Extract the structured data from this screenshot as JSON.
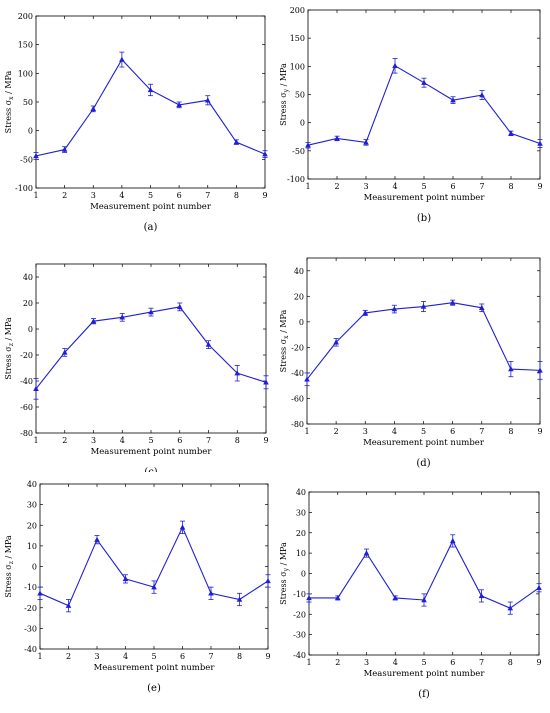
{
  "chart_data": [
    {
      "type": "line",
      "panel_label": "(a)",
      "xlabel": "Measurement point number",
      "ylabel": "Stress σ_x / MPa",
      "x": [
        1,
        2,
        3,
        4,
        5,
        6,
        7,
        8,
        9
      ],
      "ylim": [
        -100,
        200
      ],
      "yticks": [
        -100,
        -50,
        0,
        50,
        100,
        150,
        200
      ],
      "series": [
        {
          "values": [
            -44,
            -33,
            38,
            124,
            71,
            45,
            53,
            -20,
            -41
          ],
          "errors": [
            6,
            5,
            5,
            13,
            10,
            5,
            8,
            4,
            6
          ]
        }
      ]
    },
    {
      "type": "line",
      "panel_label": "(b)",
      "xlabel": "Measurement point number",
      "ylabel": "Stress σ_y / MPa",
      "x": [
        1,
        2,
        3,
        4,
        5,
        6,
        7,
        8,
        9
      ],
      "ylim": [
        -100,
        200
      ],
      "yticks": [
        -100,
        -50,
        0,
        50,
        100,
        150,
        200
      ],
      "series": [
        {
          "values": [
            -40,
            -28,
            -35,
            101,
            71,
            40,
            49,
            -19,
            -37
          ],
          "errors": [
            5,
            4,
            5,
            13,
            8,
            6,
            8,
            4,
            7
          ]
        }
      ]
    },
    {
      "type": "line",
      "panel_label": "(c)",
      "xlabel": "Measurement point number",
      "ylabel": "Stress σ_z / MPa",
      "x": [
        1,
        2,
        3,
        4,
        5,
        6,
        7,
        8,
        9
      ],
      "ylim": [
        -80,
        50
      ],
      "yticks": [
        -80,
        -60,
        -40,
        -20,
        0,
        20,
        40
      ],
      "series": [
        {
          "values": [
            -46,
            -18,
            6,
            9,
            13,
            17,
            -12,
            -34,
            -41
          ],
          "errors": [
            8,
            3,
            2,
            3,
            3,
            3,
            3,
            6,
            5
          ]
        }
      ]
    },
    {
      "type": "line",
      "panel_label": "(d)",
      "xlabel": "Measurement point number",
      "ylabel": "Stress σ_x / MPa",
      "x": [
        1,
        2,
        3,
        4,
        5,
        6,
        7,
        8,
        9
      ],
      "ylim": [
        -80,
        50
      ],
      "yticks": [
        -80,
        -60,
        -40,
        -20,
        0,
        20,
        40
      ],
      "series": [
        {
          "values": [
            -45,
            -16,
            7,
            10,
            12,
            15,
            11,
            -37,
            -38
          ],
          "errors": [
            5,
            3,
            2,
            3,
            4,
            2,
            3,
            6,
            7
          ]
        }
      ]
    },
    {
      "type": "line",
      "panel_label": "(e)",
      "xlabel": "Measurement point number",
      "ylabel": "Stress σ_z / MPa",
      "x": [
        1,
        2,
        3,
        4,
        5,
        6,
        7,
        8,
        9
      ],
      "ylim": [
        -40,
        40
      ],
      "yticks": [
        -40,
        -30,
        -20,
        -10,
        0,
        10,
        20,
        30,
        40
      ],
      "series": [
        {
          "values": [
            -13,
            -19,
            13,
            -6,
            -10,
            19,
            -13,
            -16,
            -7
          ],
          "errors": [
            3,
            3,
            2,
            2,
            3,
            3,
            3,
            3,
            3
          ]
        }
      ]
    },
    {
      "type": "line",
      "panel_label": "(f)",
      "xlabel": "Measurement point number",
      "ylabel": "Stress σ_y / MPa",
      "x": [
        1,
        2,
        3,
        4,
        5,
        6,
        7,
        8,
        9
      ],
      "ylim": [
        -40,
        40
      ],
      "yticks": [
        -40,
        -30,
        -20,
        -10,
        0,
        10,
        20,
        30,
        40
      ],
      "series": [
        {
          "values": [
            -12,
            -12,
            10,
            -12,
            -13,
            16,
            -11,
            -17,
            -7
          ],
          "errors": [
            2,
            1,
            2,
            1,
            3,
            3,
            3,
            3,
            2
          ]
        }
      ]
    }
  ],
  "colors": {
    "line": "#1f1fd6",
    "axis": "#000000"
  }
}
